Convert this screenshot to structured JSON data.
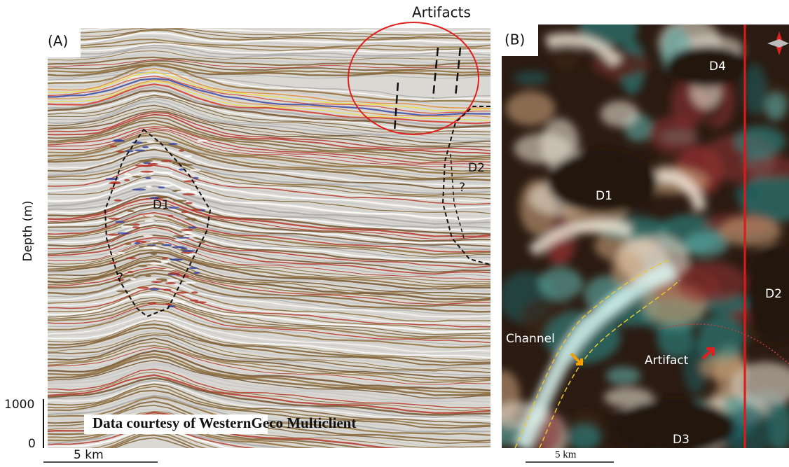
{
  "header": {
    "artifacts_label": "Artifacts"
  },
  "panel_a": {
    "label": "(A)",
    "d1": "D1",
    "d2": "D2",
    "question_1": "?",
    "question_2": "?",
    "axis_label": "Depth (m)",
    "depth_top": "1000",
    "depth_bottom": "0",
    "credit": "Data courtesy of WesternGeco Multiclient",
    "scale": "5 km"
  },
  "panel_b": {
    "label": "(B)",
    "d1": "D1",
    "d2": "D2",
    "d3": "D3",
    "d4": "D4",
    "channel": "Channel",
    "artifact": "Artifact",
    "scale": "5 km"
  }
}
